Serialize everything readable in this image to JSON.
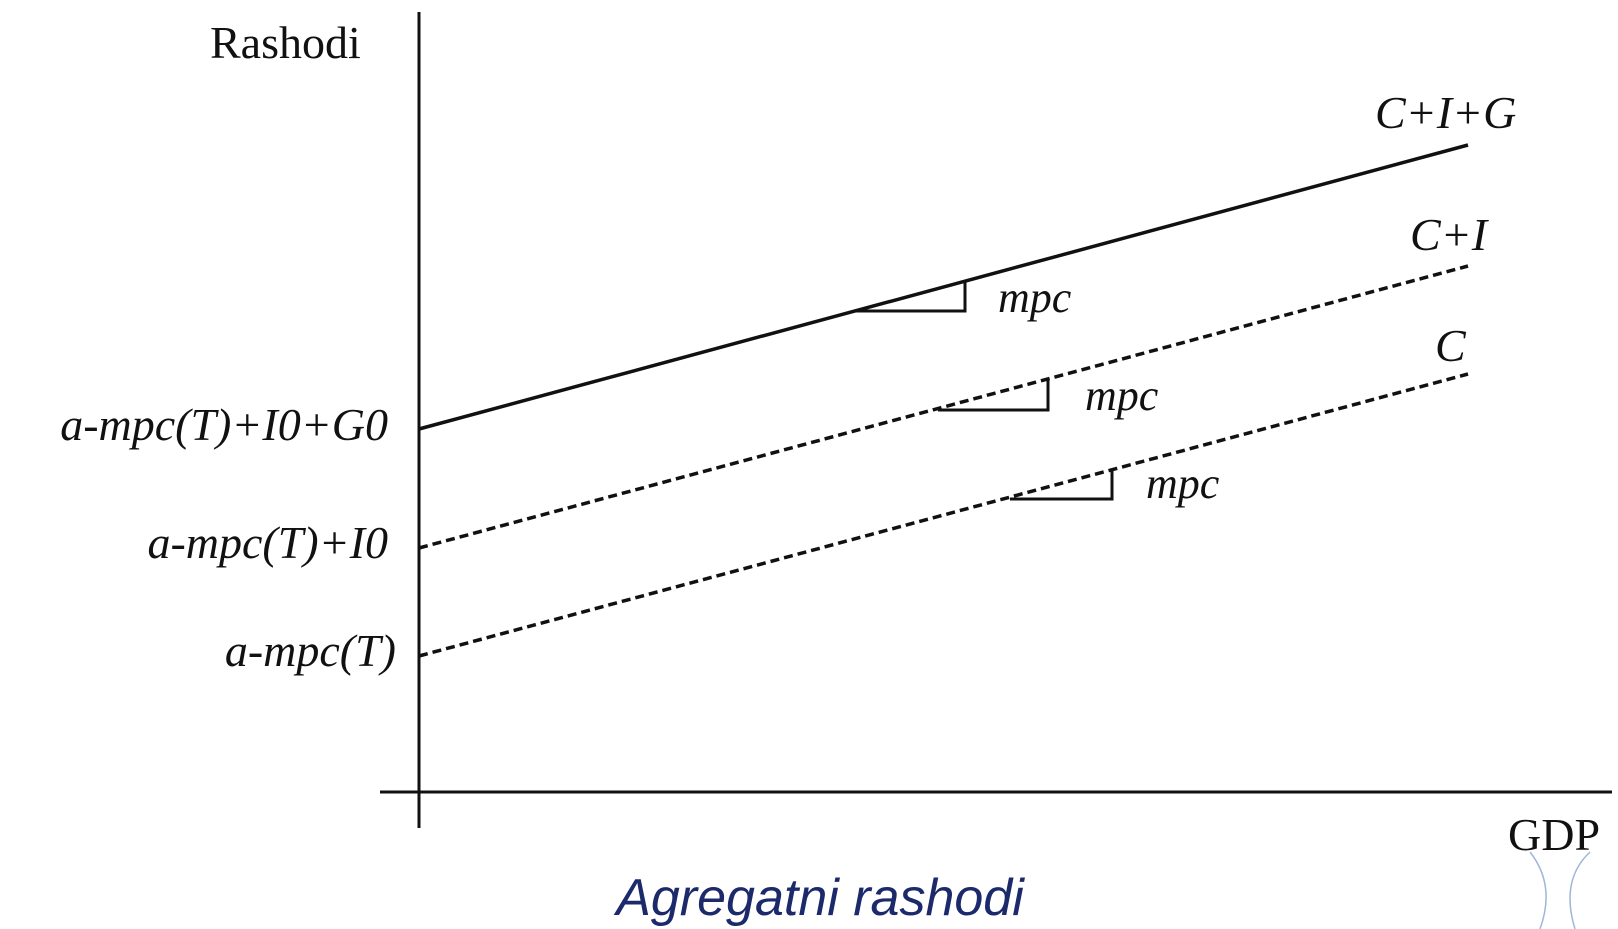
{
  "axes": {
    "y_label": "Rashodi",
    "x_label": "GDP"
  },
  "lines": [
    {
      "id": "cig",
      "label": "C+I+G",
      "intercept_label": "a-mpc(T)+I0+G0",
      "style": "solid",
      "slope_label": "mpc"
    },
    {
      "id": "ci",
      "label": "C+I",
      "intercept_label": "a-mpc(T)+I0",
      "style": "dashed",
      "slope_label": "mpc"
    },
    {
      "id": "c",
      "label": "C",
      "intercept_label": "a-mpc(T)",
      "style": "dashed",
      "slope_label": "mpc"
    }
  ],
  "caption": "Agregatni rashodi",
  "colors": {
    "lines": "#111111",
    "caption": "#1c2a6b",
    "decoration": "#9fb6d6"
  }
}
